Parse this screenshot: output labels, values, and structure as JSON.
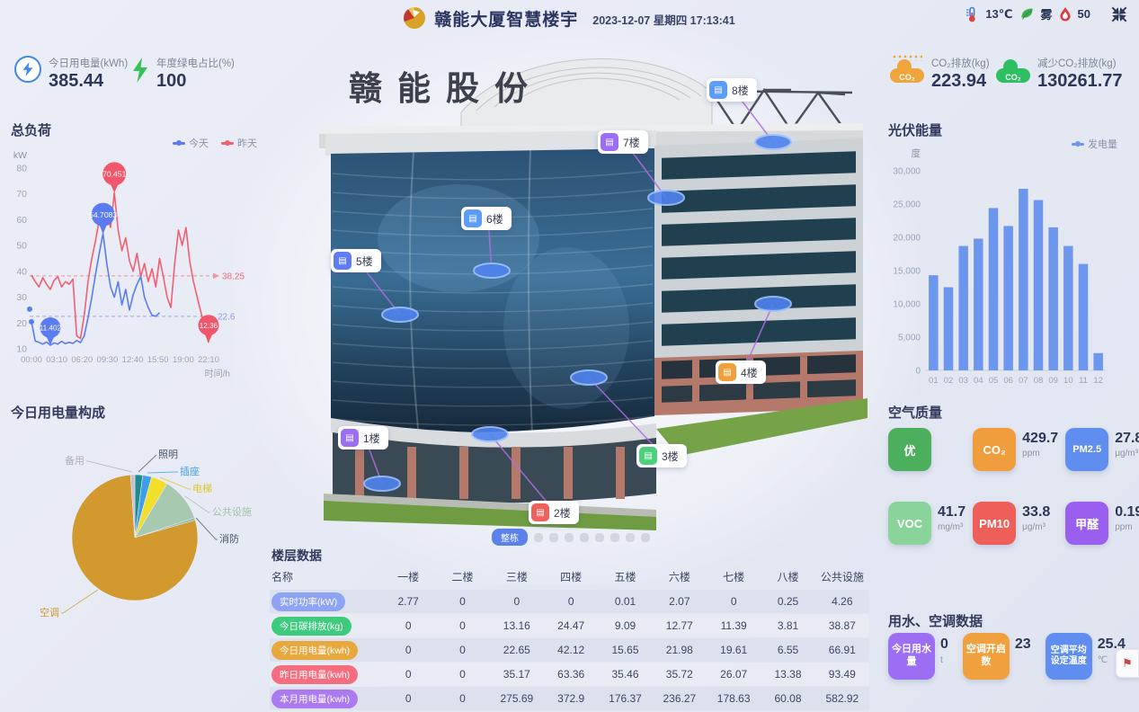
{
  "header": {
    "title": "赣能大厦智慧楼宇",
    "datetime": "2023-12-07 星期四 17:13:41",
    "weather": {
      "temperature": "13℃",
      "condition": "雾",
      "humidity": "50"
    }
  },
  "left": {
    "stats": [
      {
        "icon": "bolt-circle-icon",
        "label": "今日用电量(kWh)",
        "value": "385.44"
      },
      {
        "icon": "green-bolt-icon",
        "label": "年度绿电占比(%)",
        "value": "100"
      }
    ],
    "load_title": "总负荷",
    "pie_title": "今日用电量构成"
  },
  "right": {
    "stats": [
      {
        "icon": "co2-cloud-orange-icon",
        "label": "CO₂排放(kg)",
        "value": "223.94"
      },
      {
        "icon": "co2-cloud-green-icon",
        "label": "减少CO₂排放(kg)",
        "value": "130261.77"
      }
    ],
    "pv_title": "光伏能量",
    "air_title": "空气质量",
    "air_items": [
      {
        "tag": "优",
        "color": "#4caf5e",
        "value": "",
        "unit": ""
      },
      {
        "tag": "CO₂",
        "color": "#f09e3d",
        "value": "429.7",
        "unit": "ppm"
      },
      {
        "tag": "PM2.5",
        "color": "#5f8df0",
        "value": "27.8",
        "unit": "μg/m³"
      },
      {
        "tag": "VOC",
        "color": "#8ad49c",
        "value": "41.7",
        "unit": "mg/m³"
      },
      {
        "tag": "PM10",
        "color": "#ee5f5a",
        "value": "33.8",
        "unit": "μg/m³"
      },
      {
        "tag": "甲醛",
        "color": "#9b5ff0",
        "value": "0.19",
        "unit": "ppm"
      }
    ],
    "water_title": "用水、空调数据",
    "water_items": [
      {
        "tag": "今日用水量",
        "color": "#9b6ef3",
        "value": "0",
        "unit": "t"
      },
      {
        "tag": "空调开启数",
        "color": "#f0a03c",
        "value": "23",
        "unit": ""
      },
      {
        "tag": "空调平均设定温度",
        "color": "#5f8df0",
        "value": "25.4",
        "unit": "℃"
      }
    ]
  },
  "building": {
    "sign": "赣能股份",
    "floors": [
      {
        "label": "1楼",
        "color": "#9b6ef3"
      },
      {
        "label": "2楼",
        "color": "#f0615c"
      },
      {
        "label": "3楼",
        "color": "#4cd07d"
      },
      {
        "label": "4楼",
        "color": "#f0a03c"
      },
      {
        "label": "5楼",
        "color": "#5f7df2"
      },
      {
        "label": "6楼",
        "color": "#5a9cf8"
      },
      {
        "label": "7楼",
        "color": "#9b6ef3"
      },
      {
        "label": "8楼",
        "color": "#5a9cf8"
      }
    ],
    "pagination": {
      "active_label": "整栋",
      "dot_count": 8
    }
  },
  "table": {
    "title": "楼层数据",
    "headers": [
      "名称",
      "一楼",
      "二楼",
      "三楼",
      "四楼",
      "五楼",
      "六楼",
      "七楼",
      "八楼",
      "公共设施"
    ],
    "rows": [
      {
        "label": "实时功率(kW)",
        "color": "#8ea4f2",
        "values": [
          "2.77",
          "0",
          "0",
          "0",
          "0.01",
          "2.07",
          "0",
          "0.25",
          "4.26"
        ]
      },
      {
        "label": "今日碳排放(kg)",
        "color": "#3ecb7e",
        "values": [
          "0",
          "0",
          "13.16",
          "24.47",
          "9.09",
          "12.77",
          "11.39",
          "3.81",
          "38.87"
        ]
      },
      {
        "label": "今日用电量(kwh)",
        "color": "#e7a93d",
        "values": [
          "0",
          "0",
          "22.65",
          "42.12",
          "15.65",
          "21.98",
          "19.61",
          "6.55",
          "66.91"
        ]
      },
      {
        "label": "昨日用电量(kwh)",
        "color": "#f56d7e",
        "values": [
          "0",
          "0",
          "35.17",
          "63.36",
          "35.46",
          "35.72",
          "26.07",
          "13.38",
          "93.49"
        ]
      },
      {
        "label": "本月用电量(kwh)",
        "color": "#ab7af0",
        "values": [
          "0",
          "0",
          "275.69",
          "372.9",
          "176.37",
          "236.27",
          "178.63",
          "60.08",
          "582.92"
        ]
      }
    ]
  },
  "chart_data": [
    {
      "type": "line",
      "title": "总负荷",
      "ylabel": "kW",
      "xlabel": "时间/h",
      "ylim": [
        10,
        80
      ],
      "yticks": [
        10,
        20,
        30,
        40,
        50,
        60,
        70,
        80
      ],
      "xticks": [
        "00:00",
        "03:10",
        "06:20",
        "09:30",
        "12:40",
        "15:50",
        "19:00",
        "22:10"
      ],
      "legend": [
        "今天",
        "昨天"
      ],
      "legend_position": "top-right",
      "grid": false,
      "points_per_day": 48,
      "series": [
        {
          "name": "今天",
          "color": "#5b7cf0",
          "values": [
            20.5,
            13,
            12.5,
            11.8,
            12.6,
            11.402,
            12.3,
            11.8,
            12.9,
            12,
            12.5,
            12.1,
            13.2,
            12.4,
            15,
            22,
            30,
            39,
            47,
            54.7083,
            43,
            34,
            30,
            36,
            27,
            33,
            25,
            31,
            35,
            38,
            30,
            26,
            23,
            22.6,
            24
          ]
        },
        {
          "name": "昨天",
          "color": "#f25f70",
          "values": [
            38.5,
            36,
            34,
            37.5,
            35,
            33,
            36.5,
            38,
            34,
            36,
            35,
            37,
            15,
            14,
            23,
            36,
            45,
            52,
            60,
            55,
            62,
            57,
            70.451,
            56,
            48,
            53,
            44,
            40,
            47,
            38,
            43,
            36,
            41,
            34,
            45,
            38,
            30,
            26,
            43,
            56,
            50,
            57,
            44,
            36,
            30,
            24,
            18,
            12.36
          ]
        }
      ],
      "markers": {
        "today_max": {
          "label": "54.7083",
          "index": 19
        },
        "today_min": {
          "label": "11.402",
          "index": 5
        },
        "today_avg": {
          "label": "22.6",
          "value": 22.6
        },
        "yesterday_max": {
          "label": "70.451",
          "index": 22
        },
        "yesterday_min": {
          "label": "12.36",
          "index": 47
        },
        "yesterday_avg": {
          "label": "38.25",
          "value": 38.25
        }
      }
    },
    {
      "type": "bar",
      "title": "光伏能量",
      "ylabel": "度",
      "legend": [
        "发电量"
      ],
      "bar_color": "#6d96ee",
      "ylim": [
        0,
        30000
      ],
      "ytick_step": 5000,
      "grid": false,
      "categories": [
        "01",
        "02",
        "03",
        "04",
        "05",
        "06",
        "07",
        "08",
        "09",
        "10",
        "11",
        "12"
      ],
      "values": [
        14300,
        12500,
        18700,
        19800,
        24400,
        21700,
        27300,
        25600,
        21500,
        18700,
        16000,
        2600
      ]
    },
    {
      "type": "pie",
      "title": "今日用电量构成",
      "slices": [
        {
          "name": "照明",
          "value": 2.0,
          "color": "#1f8c8c",
          "label_color": "#4a5568"
        },
        {
          "name": "插座",
          "value": 2.3,
          "color": "#3f9ee8",
          "label_color": "#3f9ee8"
        },
        {
          "name": "电梯",
          "value": 4.3,
          "color": "#f2df2a",
          "label_color": "#e0c62a"
        },
        {
          "name": "公共设施",
          "value": 11.3,
          "color": "#a7c9af",
          "label_color": "#9fbfa7"
        },
        {
          "name": "消防",
          "value": 0.6,
          "color": "#8fb6a8",
          "label_color": "#4a5568"
        },
        {
          "name": "空调",
          "value": 78.4,
          "color": "#d1992e",
          "label_color": "#d1992e"
        },
        {
          "name": "备用",
          "value": 1.1,
          "color": "#c6bfd0",
          "label_color": "#b3abbe"
        }
      ]
    }
  ]
}
